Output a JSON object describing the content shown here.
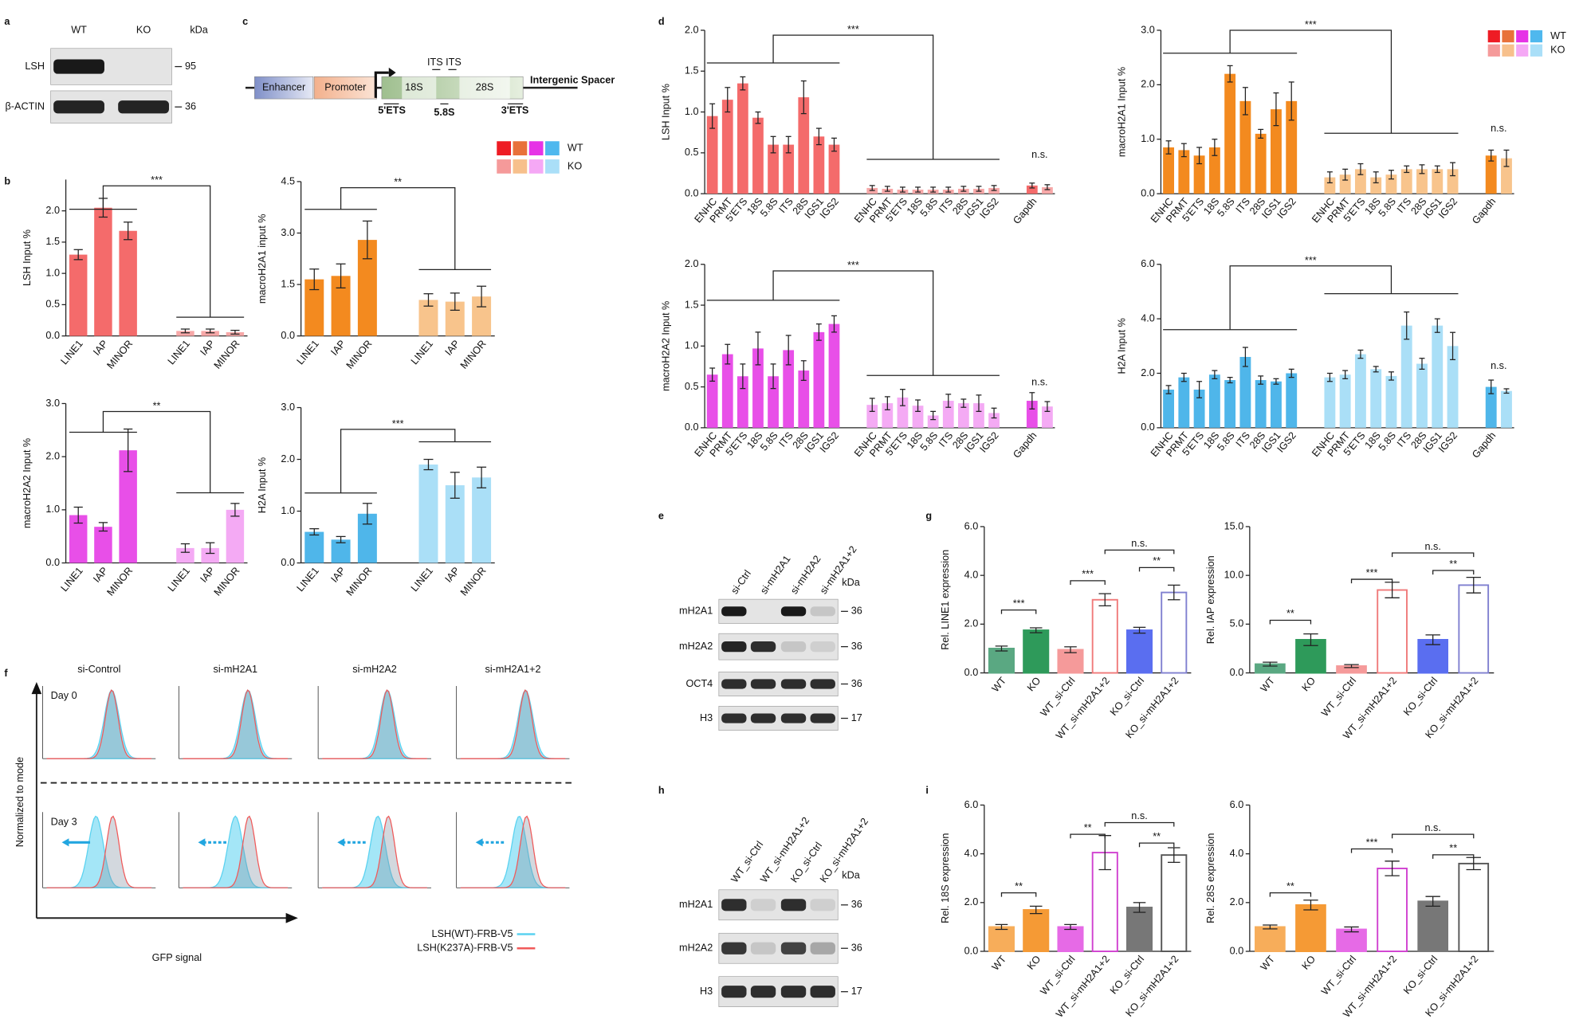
{
  "panel_labels": [
    "a",
    "b",
    "c",
    "d",
    "e",
    "f",
    "g",
    "h",
    "i"
  ],
  "blot_a": {
    "lanes": [
      "WT",
      "KO"
    ],
    "unit": "kDa",
    "rows": [
      "LSH",
      "β-ACTIN"
    ],
    "markers": [
      "95",
      "36"
    ]
  },
  "diagram_c": {
    "enhancer": "Enhancer",
    "promoter": "Promoter",
    "s18": "18S",
    "its": "ITS ITS",
    "s28": "28S",
    "spacer": "Intergenic Spacer",
    "ets5": "5'ETS",
    "s58": "5.8S",
    "ets3": "3'ETS"
  },
  "legend_bc": {
    "names": [
      "WT",
      "KO"
    ],
    "colors": [
      [
        "#ee1c24",
        "#e8713a",
        "#e633e6",
        "#4fb8ee"
      ],
      [
        "#f59a9a",
        "#f7c08c",
        "#f5a8f5",
        "#aadff8"
      ]
    ]
  },
  "legend_d": {
    "names": [
      "WT",
      "KO"
    ],
    "colors": [
      [
        "#ee1c24",
        "#e8713a",
        "#e633e6",
        "#4fb8ee"
      ],
      [
        "#f59a9a",
        "#f7c08c",
        "#f5a8f5",
        "#aadff8"
      ]
    ]
  },
  "blot_e": {
    "lanes": [
      "si-Ctrl",
      "si-mH2A1",
      "si-mH2A2",
      "si-mH2A1+2"
    ],
    "unit": "kDa",
    "rows": [
      "mH2A1",
      "mH2A2",
      "OCT4",
      "H3"
    ],
    "markers": [
      "36",
      "36",
      "36",
      "17"
    ]
  },
  "blot_h": {
    "lanes": [
      "WT_si-Ctrl",
      "WT_si-mH2A1+2",
      "KO_si-Ctrl",
      "KO_si-mH2A1+2"
    ],
    "unit": "kDa",
    "rows": [
      "mH2A1",
      "mH2A2",
      "H3"
    ],
    "markers": [
      "36",
      "36",
      "17"
    ]
  },
  "flow_f": {
    "columns": [
      "si-Control",
      "si-mH2A1",
      "si-mH2A2",
      "si-mH2A1+2"
    ],
    "days": [
      "Day 0",
      "Day 3"
    ],
    "ylabel": "Normalized to mode",
    "xlabel": "GFP signal",
    "legend": [
      "LSH(WT)-FRB-V5",
      "LSH(K237A)-FRB-V5"
    ],
    "colors": [
      "#5ad2f0",
      "#f05a5a"
    ]
  },
  "chart_data": [
    {
      "type": "bar",
      "ylabel": "LSH Input %",
      "categories": [
        "LINE1",
        "IAP",
        "MINOR",
        "LINE1",
        "IAP",
        "MINOR"
      ],
      "values": [
        1.3,
        2.05,
        1.68,
        0.08,
        0.08,
        0.06
      ],
      "errors": [
        0.08,
        0.15,
        0.14,
        0.03,
        0.03,
        0.03
      ],
      "colors": [
        "#f46b6b",
        "#f46b6b",
        "#f46b6b",
        "#f7a8a8",
        "#f7a8a8",
        "#f7a8a8"
      ],
      "ylim": [
        0,
        2.5
      ],
      "yticks": [
        {
          "value": 0,
          "label": "0.0"
        },
        0.5,
        {
          "value": 1,
          "label": "1.0"
        },
        1.5,
        {
          "value": 2,
          "label": "2.0"
        }
      ],
      "significance": [
        "***"
      ]
    },
    {
      "type": "bar",
      "ylabel": "macroH2A2 Input %",
      "categories": [
        "LINE1",
        "IAP",
        "MINOR",
        "LINE1",
        "IAP",
        "MINOR"
      ],
      "values": [
        0.9,
        0.68,
        2.12,
        0.28,
        0.28,
        1.0
      ],
      "errors": [
        0.15,
        0.08,
        0.4,
        0.08,
        0.1,
        0.12
      ],
      "colors": [
        "#e84fe8",
        "#e84fe8",
        "#e84fe8",
        "#f4aaf4",
        "#f4aaf4",
        "#f4aaf4"
      ],
      "ylim": [
        0,
        3
      ],
      "yticks": [
        {
          "value": 0,
          "label": "0.0"
        },
        {
          "value": 1,
          "label": "1.0"
        },
        {
          "value": 2,
          "label": "2.0"
        },
        {
          "value": 3,
          "label": "3.0"
        }
      ],
      "significance": [
        "**"
      ]
    },
    {
      "type": "bar",
      "ylabel": "macroH2A1 input %",
      "categories": [
        "LINE1",
        "IAP",
        "MINOR",
        "LINE1",
        "IAP",
        "MINOR"
      ],
      "values": [
        1.65,
        1.75,
        2.8,
        1.05,
        1.0,
        1.15
      ],
      "errors": [
        0.3,
        0.35,
        0.55,
        0.18,
        0.25,
        0.3
      ],
      "colors": [
        "#f38a1f",
        "#f38a1f",
        "#f38a1f",
        "#f8c48c",
        "#f8c48c",
        "#f8c48c"
      ],
      "ylim": [
        0,
        4.5
      ],
      "yticks": [
        {
          "value": 0,
          "label": "0.0"
        },
        1.5,
        {
          "value": 3,
          "label": "3.0"
        },
        4.5
      ],
      "significance": [
        "**"
      ]
    },
    {
      "type": "bar",
      "ylabel": "H2A Input %",
      "categories": [
        "LINE1",
        "IAP",
        "MINOR",
        "LINE1",
        "IAP",
        "MINOR"
      ],
      "values": [
        0.6,
        0.45,
        0.95,
        1.9,
        1.5,
        1.65
      ],
      "errors": [
        0.06,
        0.06,
        0.2,
        0.1,
        0.25,
        0.2
      ],
      "colors": [
        "#4fb6ea",
        "#4fb6ea",
        "#4fb6ea",
        "#aadff7",
        "#aadff7",
        "#aadff7"
      ],
      "ylim": [
        0,
        3
      ],
      "yticks": [
        {
          "value": 0,
          "label": "0.0"
        },
        {
          "value": 1,
          "label": "1.0"
        },
        {
          "value": 2,
          "label": "2.0"
        },
        {
          "value": 3,
          "label": "3.0"
        }
      ],
      "significance": [
        "***"
      ]
    },
    {
      "type": "bar",
      "ylabel": "LSH Input %",
      "categories": [
        "ENHC",
        "PRMT",
        "5'ETS",
        "18S",
        "5.8S",
        "ITS",
        "28S",
        "IGS1",
        "IGS2",
        "ENHC",
        "PRMT",
        "5'ETS",
        "18S",
        "5.8S",
        "ITS",
        "28S",
        "IGS1",
        "IGS2",
        "Gapdh",
        null
      ],
      "values": [
        0.95,
        1.15,
        1.35,
        0.93,
        0.6,
        0.6,
        1.18,
        0.7,
        0.6,
        0.07,
        0.06,
        0.05,
        0.05,
        0.05,
        0.05,
        0.06,
        0.06,
        0.07,
        0.1,
        0.08
      ],
      "errors": [
        0.15,
        0.15,
        0.08,
        0.07,
        0.1,
        0.1,
        0.2,
        0.1,
        0.08,
        0.03,
        0.03,
        0.03,
        0.03,
        0.03,
        0.03,
        0.03,
        0.03,
        0.03,
        0.03,
        0.03
      ],
      "colors": [
        "#f46b6b",
        "#f46b6b",
        "#f46b6b",
        "#f46b6b",
        "#f46b6b",
        "#f46b6b",
        "#f46b6b",
        "#f46b6b",
        "#f46b6b",
        "#f7a8a8",
        "#f7a8a8",
        "#f7a8a8",
        "#f7a8a8",
        "#f7a8a8",
        "#f7a8a8",
        "#f7a8a8",
        "#f7a8a8",
        "#f7a8a8",
        "#f46b6b",
        "#f7a8a8"
      ],
      "ylim": [
        0,
        2
      ],
      "yticks": [
        {
          "value": 0,
          "label": "0.0"
        },
        0.5,
        {
          "value": 1,
          "label": "1.0"
        },
        1.5,
        {
          "value": 2,
          "label": "2.0"
        }
      ],
      "significance": [
        "***",
        "n.s."
      ]
    },
    {
      "type": "bar",
      "ylabel": "macroH2A1 Input %",
      "categories": [
        "ENHC",
        "PRMT",
        "5'ETS",
        "18S",
        "5.8S",
        "ITS",
        "28S",
        "IGS1",
        "IGS2",
        "ENHC",
        "PRMT",
        "5'ETS",
        "18S",
        "5.8S",
        "ITS",
        "28S",
        "IGS1",
        "IGS2",
        "Gapdh",
        null
      ],
      "values": [
        0.85,
        0.8,
        0.7,
        0.85,
        2.2,
        1.7,
        1.1,
        1.55,
        1.7,
        0.3,
        0.35,
        0.45,
        0.3,
        0.35,
        0.45,
        0.45,
        0.45,
        0.45,
        0.7,
        0.65
      ],
      "errors": [
        0.12,
        0.12,
        0.15,
        0.15,
        0.15,
        0.25,
        0.08,
        0.3,
        0.35,
        0.1,
        0.1,
        0.1,
        0.1,
        0.08,
        0.06,
        0.08,
        0.06,
        0.12,
        0.1,
        0.15
      ],
      "colors": [
        "#f38a1f",
        "#f38a1f",
        "#f38a1f",
        "#f38a1f",
        "#f38a1f",
        "#f38a1f",
        "#f38a1f",
        "#f38a1f",
        "#f38a1f",
        "#f8c48c",
        "#f8c48c",
        "#f8c48c",
        "#f8c48c",
        "#f8c48c",
        "#f8c48c",
        "#f8c48c",
        "#f8c48c",
        "#f8c48c",
        "#f38a1f",
        "#f8c48c"
      ],
      "ylim": [
        0,
        3
      ],
      "yticks": [
        {
          "value": 0,
          "label": "0.0"
        },
        {
          "value": 1,
          "label": "1.0"
        },
        {
          "value": 2,
          "label": "2.0"
        },
        {
          "value": 3,
          "label": "3.0"
        }
      ],
      "significance": [
        "***",
        "n.s."
      ]
    },
    {
      "type": "bar",
      "ylabel": "macroH2A2 Input %",
      "categories": [
        "ENHC",
        "PRMT",
        "5'ETS",
        "18S",
        "5.8S",
        "ITS",
        "28S",
        "IGS1",
        "IGS2",
        "ENHC",
        "PRMT",
        "5'ETS",
        "18S",
        "5.8S",
        "ITS",
        "28S",
        "IGS1",
        "IGS2",
        "Gapdh",
        null
      ],
      "values": [
        0.65,
        0.9,
        0.63,
        0.97,
        0.63,
        0.95,
        0.7,
        1.17,
        1.27,
        0.28,
        0.3,
        0.37,
        0.27,
        0.15,
        0.33,
        0.3,
        0.3,
        0.18,
        0.33,
        0.26
      ],
      "errors": [
        0.08,
        0.12,
        0.15,
        0.2,
        0.15,
        0.18,
        0.12,
        0.1,
        0.1,
        0.08,
        0.08,
        0.1,
        0.07,
        0.05,
        0.08,
        0.05,
        0.1,
        0.06,
        0.1,
        0.06
      ],
      "colors": [
        "#e84fe8",
        "#e84fe8",
        "#e84fe8",
        "#e84fe8",
        "#e84fe8",
        "#e84fe8",
        "#e84fe8",
        "#e84fe8",
        "#e84fe8",
        "#f4aaf4",
        "#f4aaf4",
        "#f4aaf4",
        "#f4aaf4",
        "#f4aaf4",
        "#f4aaf4",
        "#f4aaf4",
        "#f4aaf4",
        "#f4aaf4",
        "#e84fe8",
        "#f4aaf4"
      ],
      "ylim": [
        0,
        2
      ],
      "yticks": [
        {
          "value": 0,
          "label": "0.0"
        },
        0.5,
        {
          "value": 1,
          "label": "1.0"
        },
        1.5,
        {
          "value": 2,
          "label": "2.0"
        }
      ],
      "significance": [
        "***",
        "n.s."
      ]
    },
    {
      "type": "bar",
      "ylabel": "H2A Input %",
      "categories": [
        "ENHC",
        "PRMT",
        "5'ETS",
        "18S",
        "5.8S",
        "ITS",
        "28S",
        "IGS1",
        "IGS2",
        "ENHC",
        "PRMT",
        "5'ETS",
        "18S",
        "5.8S",
        "ITS",
        "28S",
        "IGS1",
        "IGS2",
        "Gapdh",
        null
      ],
      "values": [
        1.4,
        1.85,
        1.4,
        1.95,
        1.75,
        2.6,
        1.75,
        1.7,
        2.0,
        1.85,
        1.95,
        2.7,
        2.15,
        1.9,
        3.75,
        2.35,
        3.75,
        3.0,
        1.5,
        1.35
      ],
      "errors": [
        0.15,
        0.15,
        0.3,
        0.15,
        0.1,
        0.35,
        0.15,
        0.1,
        0.15,
        0.15,
        0.15,
        0.15,
        0.1,
        0.15,
        0.5,
        0.2,
        0.25,
        0.5,
        0.25,
        0.08
      ],
      "colors": [
        "#4fb6ea",
        "#4fb6ea",
        "#4fb6ea",
        "#4fb6ea",
        "#4fb6ea",
        "#4fb6ea",
        "#4fb6ea",
        "#4fb6ea",
        "#4fb6ea",
        "#aadff7",
        "#aadff7",
        "#aadff7",
        "#aadff7",
        "#aadff7",
        "#aadff7",
        "#aadff7",
        "#aadff7",
        "#aadff7",
        "#4fb6ea",
        "#aadff7"
      ],
      "ylim": [
        0,
        6
      ],
      "yticks": [
        {
          "value": 0,
          "label": "0.0"
        },
        {
          "value": 2,
          "label": "2.0"
        },
        {
          "value": 4,
          "label": "4.0"
        },
        {
          "value": 6,
          "label": "6.0"
        }
      ],
      "significance": [
        "***",
        "n.s."
      ]
    },
    {
      "type": "bar",
      "ylabel": "Rel. LINE1 expression",
      "categories": [
        "WT",
        "KO",
        "WT_si-Ctrl",
        "WT_si-mH2A1+2",
        "KO_si-Ctrl",
        "KO_si-mH2A1+2"
      ],
      "values": [
        1.0,
        1.75,
        0.95,
        3.0,
        1.75,
        3.3
      ],
      "errors": [
        0.1,
        0.1,
        0.12,
        0.25,
        0.12,
        0.3
      ],
      "colors": [
        "#5aa882",
        "#2e9a5a",
        "#f59a9a",
        "#f07a7a",
        "#5a6ef0",
        "#8080d0"
      ],
      "fills": [
        "#5aa882",
        "#2e9a5a",
        "#f59a9a",
        "#ffffff",
        "#5a6ef0",
        "#ffffff"
      ],
      "ylim": [
        0,
        6
      ],
      "yticks": [
        {
          "value": 0,
          "label": "0.0"
        },
        {
          "value": 2,
          "label": "2.0"
        },
        {
          "value": 4,
          "label": "4.0"
        },
        {
          "value": 6,
          "label": "6.0"
        }
      ],
      "significance": [
        "***",
        "***",
        "**",
        "n.s."
      ]
    },
    {
      "type": "bar",
      "ylabel": "Rel. IAP expression",
      "categories": [
        "WT",
        "KO",
        "WT_si-Ctrl",
        "WT_si-mH2A1+2",
        "KO_si-Ctrl",
        "KO_si-mH2A1+2"
      ],
      "values": [
        0.9,
        3.4,
        0.7,
        8.5,
        3.4,
        9.0
      ],
      "errors": [
        0.2,
        0.6,
        0.15,
        0.8,
        0.5,
        0.8
      ],
      "colors": [
        "#5aa882",
        "#2e9a5a",
        "#f59a9a",
        "#f07a7a",
        "#5a6ef0",
        "#8080d0"
      ],
      "fills": [
        "#5aa882",
        "#2e9a5a",
        "#f59a9a",
        "#ffffff",
        "#5a6ef0",
        "#ffffff"
      ],
      "ylim": [
        0,
        15
      ],
      "yticks": [
        {
          "value": 0,
          "label": "0.0"
        },
        {
          "value": 5,
          "label": "5.0"
        },
        {
          "value": 10,
          "label": "10.0"
        },
        {
          "value": 15,
          "label": "15.0"
        }
      ],
      "significance": [
        "**",
        "***",
        "**",
        "n.s."
      ]
    },
    {
      "type": "bar",
      "ylabel": "Rel. 18S expression",
      "categories": [
        "WT",
        "KO",
        "WT_si-Ctrl",
        "WT_si-mH2A1+2",
        "KO_si-Ctrl",
        "KO_si-mH2A1+2"
      ],
      "values": [
        1.0,
        1.7,
        1.0,
        4.05,
        1.8,
        3.95
      ],
      "errors": [
        0.1,
        0.15,
        0.1,
        0.7,
        0.2,
        0.3
      ],
      "colors": [
        "#f7ad5a",
        "#f59a35",
        "#e66ae6",
        "#d040d0",
        "#777777",
        "#555555"
      ],
      "fills": [
        "#f7ad5a",
        "#f59a35",
        "#e66ae6",
        "#ffffff",
        "#777777",
        "#ffffff"
      ],
      "ylim": [
        0,
        6
      ],
      "yticks": [
        {
          "value": 0,
          "label": "0.0"
        },
        {
          "value": 2,
          "label": "2.0"
        },
        {
          "value": 4,
          "label": "4.0"
        },
        {
          "value": 6,
          "label": "6.0"
        }
      ],
      "significance": [
        "**",
        "**",
        "**",
        "n.s."
      ]
    },
    {
      "type": "bar",
      "ylabel": "Rel. 28S expression",
      "categories": [
        "WT",
        "KO",
        "WT_si-Ctrl",
        "WT_si-mH2A1+2",
        "KO_si-Ctrl",
        "KO_si-mH2A1+2"
      ],
      "values": [
        1.0,
        1.9,
        0.9,
        3.4,
        2.05,
        3.6
      ],
      "errors": [
        0.08,
        0.2,
        0.1,
        0.3,
        0.2,
        0.25
      ],
      "colors": [
        "#f7ad5a",
        "#f59a35",
        "#e66ae6",
        "#d040d0",
        "#777777",
        "#555555"
      ],
      "fills": [
        "#f7ad5a",
        "#f59a35",
        "#e66ae6",
        "#ffffff",
        "#777777",
        "#ffffff"
      ],
      "ylim": [
        0,
        6
      ],
      "yticks": [
        {
          "value": 0,
          "label": "0.0"
        },
        {
          "value": 2,
          "label": "2.0"
        },
        {
          "value": 4,
          "label": "4.0"
        },
        {
          "value": 6,
          "label": "6.0"
        }
      ],
      "significance": [
        "**",
        "***",
        "**",
        "n.s."
      ]
    }
  ]
}
